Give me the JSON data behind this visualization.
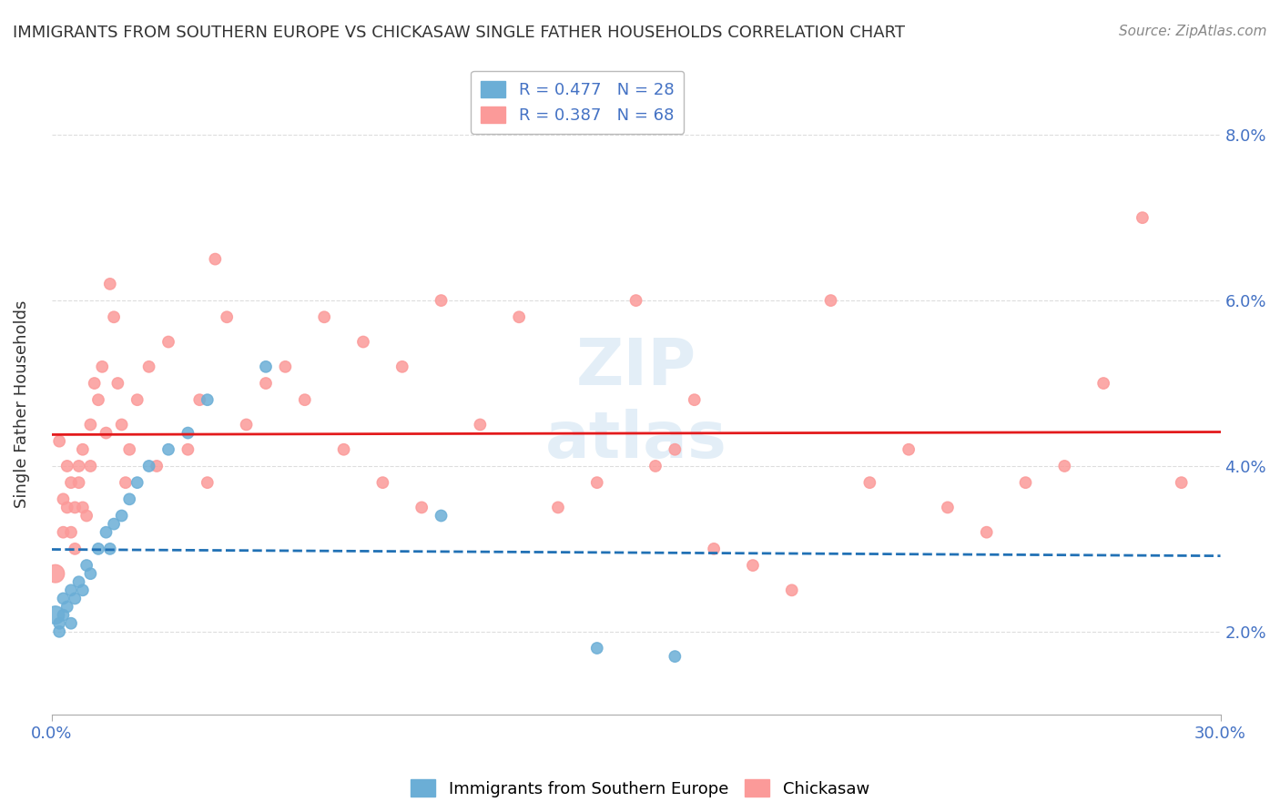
{
  "title": "IMMIGRANTS FROM SOUTHERN EUROPE VS CHICKASAW SINGLE FATHER HOUSEHOLDS CORRELATION CHART",
  "source": "Source: ZipAtlas.com",
  "xlabel": "",
  "ylabel": "Single Father Households",
  "xlim": [
    0.0,
    0.3
  ],
  "ylim": [
    0.01,
    0.085
  ],
  "yticks": [
    0.02,
    0.04,
    0.06,
    0.08
  ],
  "ytick_labels": [
    "2.0%",
    "4.0%",
    "6.0%",
    "8.0%"
  ],
  "xticks": [
    0.0,
    0.3
  ],
  "xtick_labels": [
    "0.0%",
    "30.0%"
  ],
  "legend_entries": [
    {
      "label": "R = 0.477   N = 28",
      "color": "#6baed6"
    },
    {
      "label": "R = 0.387   N = 68",
      "color": "#fb9a99"
    }
  ],
  "watermark": "ZIPatlas",
  "blue_scatter": [
    [
      0.001,
      0.022
    ],
    [
      0.002,
      0.02
    ],
    [
      0.002,
      0.021
    ],
    [
      0.003,
      0.024
    ],
    [
      0.003,
      0.022
    ],
    [
      0.004,
      0.023
    ],
    [
      0.005,
      0.025
    ],
    [
      0.005,
      0.021
    ],
    [
      0.006,
      0.024
    ],
    [
      0.007,
      0.026
    ],
    [
      0.008,
      0.025
    ],
    [
      0.009,
      0.028
    ],
    [
      0.01,
      0.027
    ],
    [
      0.012,
      0.03
    ],
    [
      0.014,
      0.032
    ],
    [
      0.015,
      0.03
    ],
    [
      0.016,
      0.033
    ],
    [
      0.018,
      0.034
    ],
    [
      0.02,
      0.036
    ],
    [
      0.022,
      0.038
    ],
    [
      0.025,
      0.04
    ],
    [
      0.03,
      0.042
    ],
    [
      0.035,
      0.044
    ],
    [
      0.04,
      0.048
    ],
    [
      0.055,
      0.052
    ],
    [
      0.1,
      0.034
    ],
    [
      0.14,
      0.018
    ],
    [
      0.16,
      0.017
    ]
  ],
  "blue_sizes": [
    200,
    80,
    80,
    80,
    80,
    80,
    80,
    80,
    80,
    80,
    80,
    80,
    80,
    80,
    80,
    80,
    80,
    80,
    80,
    80,
    80,
    80,
    80,
    80,
    80,
    80,
    80,
    80
  ],
  "pink_scatter": [
    [
      0.001,
      0.027
    ],
    [
      0.002,
      0.043
    ],
    [
      0.003,
      0.032
    ],
    [
      0.003,
      0.036
    ],
    [
      0.004,
      0.035
    ],
    [
      0.004,
      0.04
    ],
    [
      0.005,
      0.038
    ],
    [
      0.005,
      0.032
    ],
    [
      0.006,
      0.035
    ],
    [
      0.006,
      0.03
    ],
    [
      0.007,
      0.04
    ],
    [
      0.007,
      0.038
    ],
    [
      0.008,
      0.042
    ],
    [
      0.008,
      0.035
    ],
    [
      0.009,
      0.034
    ],
    [
      0.01,
      0.045
    ],
    [
      0.01,
      0.04
    ],
    [
      0.011,
      0.05
    ],
    [
      0.012,
      0.048
    ],
    [
      0.013,
      0.052
    ],
    [
      0.014,
      0.044
    ],
    [
      0.015,
      0.062
    ],
    [
      0.016,
      0.058
    ],
    [
      0.017,
      0.05
    ],
    [
      0.018,
      0.045
    ],
    [
      0.019,
      0.038
    ],
    [
      0.02,
      0.042
    ],
    [
      0.022,
      0.048
    ],
    [
      0.025,
      0.052
    ],
    [
      0.027,
      0.04
    ],
    [
      0.03,
      0.055
    ],
    [
      0.035,
      0.042
    ],
    [
      0.038,
      0.048
    ],
    [
      0.04,
      0.038
    ],
    [
      0.042,
      0.065
    ],
    [
      0.045,
      0.058
    ],
    [
      0.05,
      0.045
    ],
    [
      0.055,
      0.05
    ],
    [
      0.06,
      0.052
    ],
    [
      0.065,
      0.048
    ],
    [
      0.07,
      0.058
    ],
    [
      0.075,
      0.042
    ],
    [
      0.08,
      0.055
    ],
    [
      0.085,
      0.038
    ],
    [
      0.09,
      0.052
    ],
    [
      0.095,
      0.035
    ],
    [
      0.1,
      0.06
    ],
    [
      0.11,
      0.045
    ],
    [
      0.12,
      0.058
    ],
    [
      0.13,
      0.035
    ],
    [
      0.14,
      0.038
    ],
    [
      0.15,
      0.06
    ],
    [
      0.155,
      0.04
    ],
    [
      0.16,
      0.042
    ],
    [
      0.165,
      0.048
    ],
    [
      0.17,
      0.03
    ],
    [
      0.18,
      0.028
    ],
    [
      0.19,
      0.025
    ],
    [
      0.2,
      0.06
    ],
    [
      0.21,
      0.038
    ],
    [
      0.22,
      0.042
    ],
    [
      0.23,
      0.035
    ],
    [
      0.24,
      0.032
    ],
    [
      0.25,
      0.038
    ],
    [
      0.26,
      0.04
    ],
    [
      0.27,
      0.05
    ],
    [
      0.28,
      0.07
    ],
    [
      0.29,
      0.038
    ]
  ],
  "pink_sizes": [
    200,
    80,
    80,
    80,
    80,
    80,
    80,
    80,
    80,
    80,
    80,
    80,
    80,
    80,
    80,
    80,
    80,
    80,
    80,
    80,
    80,
    80,
    80,
    80,
    80,
    80,
    80,
    80,
    80,
    80,
    80,
    80,
    80,
    80,
    80,
    80,
    80,
    80,
    80,
    80,
    80,
    80,
    80,
    80,
    80,
    80,
    80,
    80,
    80,
    80,
    80,
    80,
    80,
    80,
    80,
    80,
    80,
    80,
    80,
    80,
    80,
    80,
    80,
    80,
    80,
    80,
    80,
    80
  ],
  "blue_color": "#6baed6",
  "pink_color": "#fb9a99",
  "blue_line_color": "#2171b5",
  "pink_line_color": "#e31a1c",
  "background_color": "#ffffff",
  "grid_color": "#dddddd",
  "title_color": "#333333",
  "axis_label_color": "#4472c4",
  "tick_color": "#4472c4"
}
